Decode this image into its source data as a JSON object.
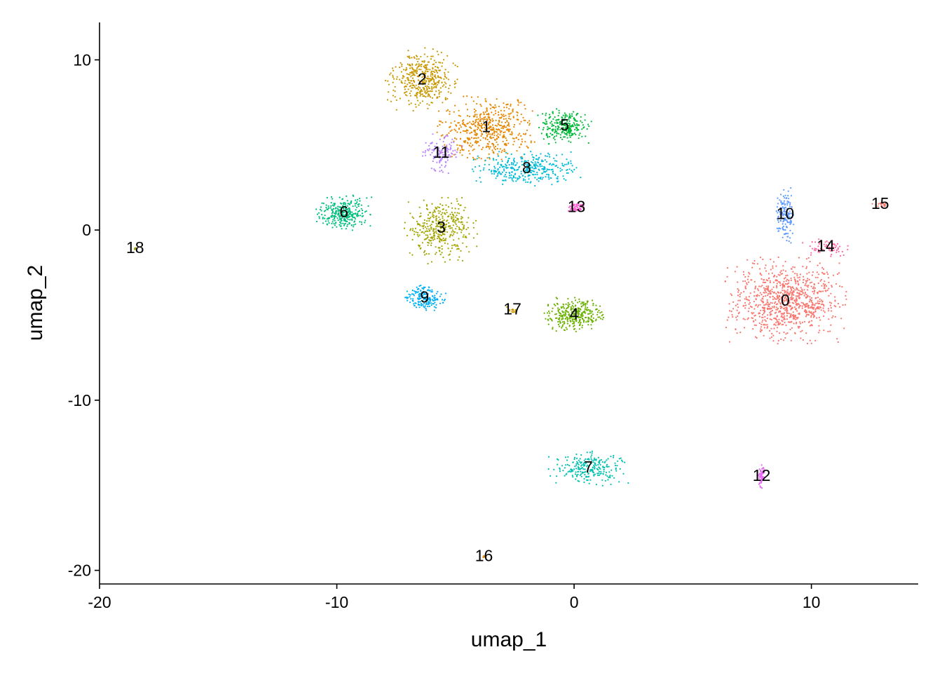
{
  "chart_data": {
    "type": "scatter",
    "xlabel": "umap_1",
    "ylabel": "umap_2",
    "xlim": [
      -20,
      14.5
    ],
    "ylim": [
      -20.8,
      12.2
    ],
    "xticks": [
      -20,
      -10,
      0,
      10
    ],
    "yticks": [
      -20,
      -10,
      0,
      10
    ],
    "grid": false,
    "legend": "none",
    "clusters": [
      {
        "name": "0",
        "x": 8.9,
        "y": -4.2,
        "color": "#F8766D"
      },
      {
        "name": "1",
        "x": -3.7,
        "y": 6.0,
        "color": "#E58700"
      },
      {
        "name": "2",
        "x": -6.4,
        "y": 8.8,
        "color": "#C99800"
      },
      {
        "name": "3",
        "x": -5.6,
        "y": 0.1,
        "color": "#A3A500"
      },
      {
        "name": "4",
        "x": 0.0,
        "y": -5.0,
        "color": "#6BB100"
      },
      {
        "name": "5",
        "x": -0.4,
        "y": 6.1,
        "color": "#00BA38"
      },
      {
        "name": "6",
        "x": -9.7,
        "y": 1.0,
        "color": "#00BF7D"
      },
      {
        "name": "7",
        "x": 0.6,
        "y": -14.0,
        "color": "#00C0AF"
      },
      {
        "name": "8",
        "x": -2.0,
        "y": 3.6,
        "color": "#00BCD8"
      },
      {
        "name": "9",
        "x": -6.3,
        "y": -4.0,
        "color": "#00B0F6"
      },
      {
        "name": "10",
        "x": 8.9,
        "y": 0.9,
        "color": "#619CFF"
      },
      {
        "name": "11",
        "x": -5.6,
        "y": 4.5,
        "color": "#B983FF"
      },
      {
        "name": "12",
        "x": 7.9,
        "y": -14.5,
        "color": "#E76BF3"
      },
      {
        "name": "13",
        "x": 0.1,
        "y": 1.3,
        "color": "#FD61D1"
      },
      {
        "name": "14",
        "x": 10.6,
        "y": -1.0,
        "color": "#FF67A4"
      },
      {
        "name": "15",
        "x": 12.9,
        "y": 1.5,
        "color": "#F8766D"
      },
      {
        "name": "16",
        "x": -3.8,
        "y": -19.2,
        "color": "#E58700"
      },
      {
        "name": "17",
        "x": -2.6,
        "y": -4.7,
        "color": "#C99800"
      },
      {
        "name": "18",
        "x": -18.5,
        "y": -1.1,
        "color": "#A3A500"
      }
    ]
  }
}
